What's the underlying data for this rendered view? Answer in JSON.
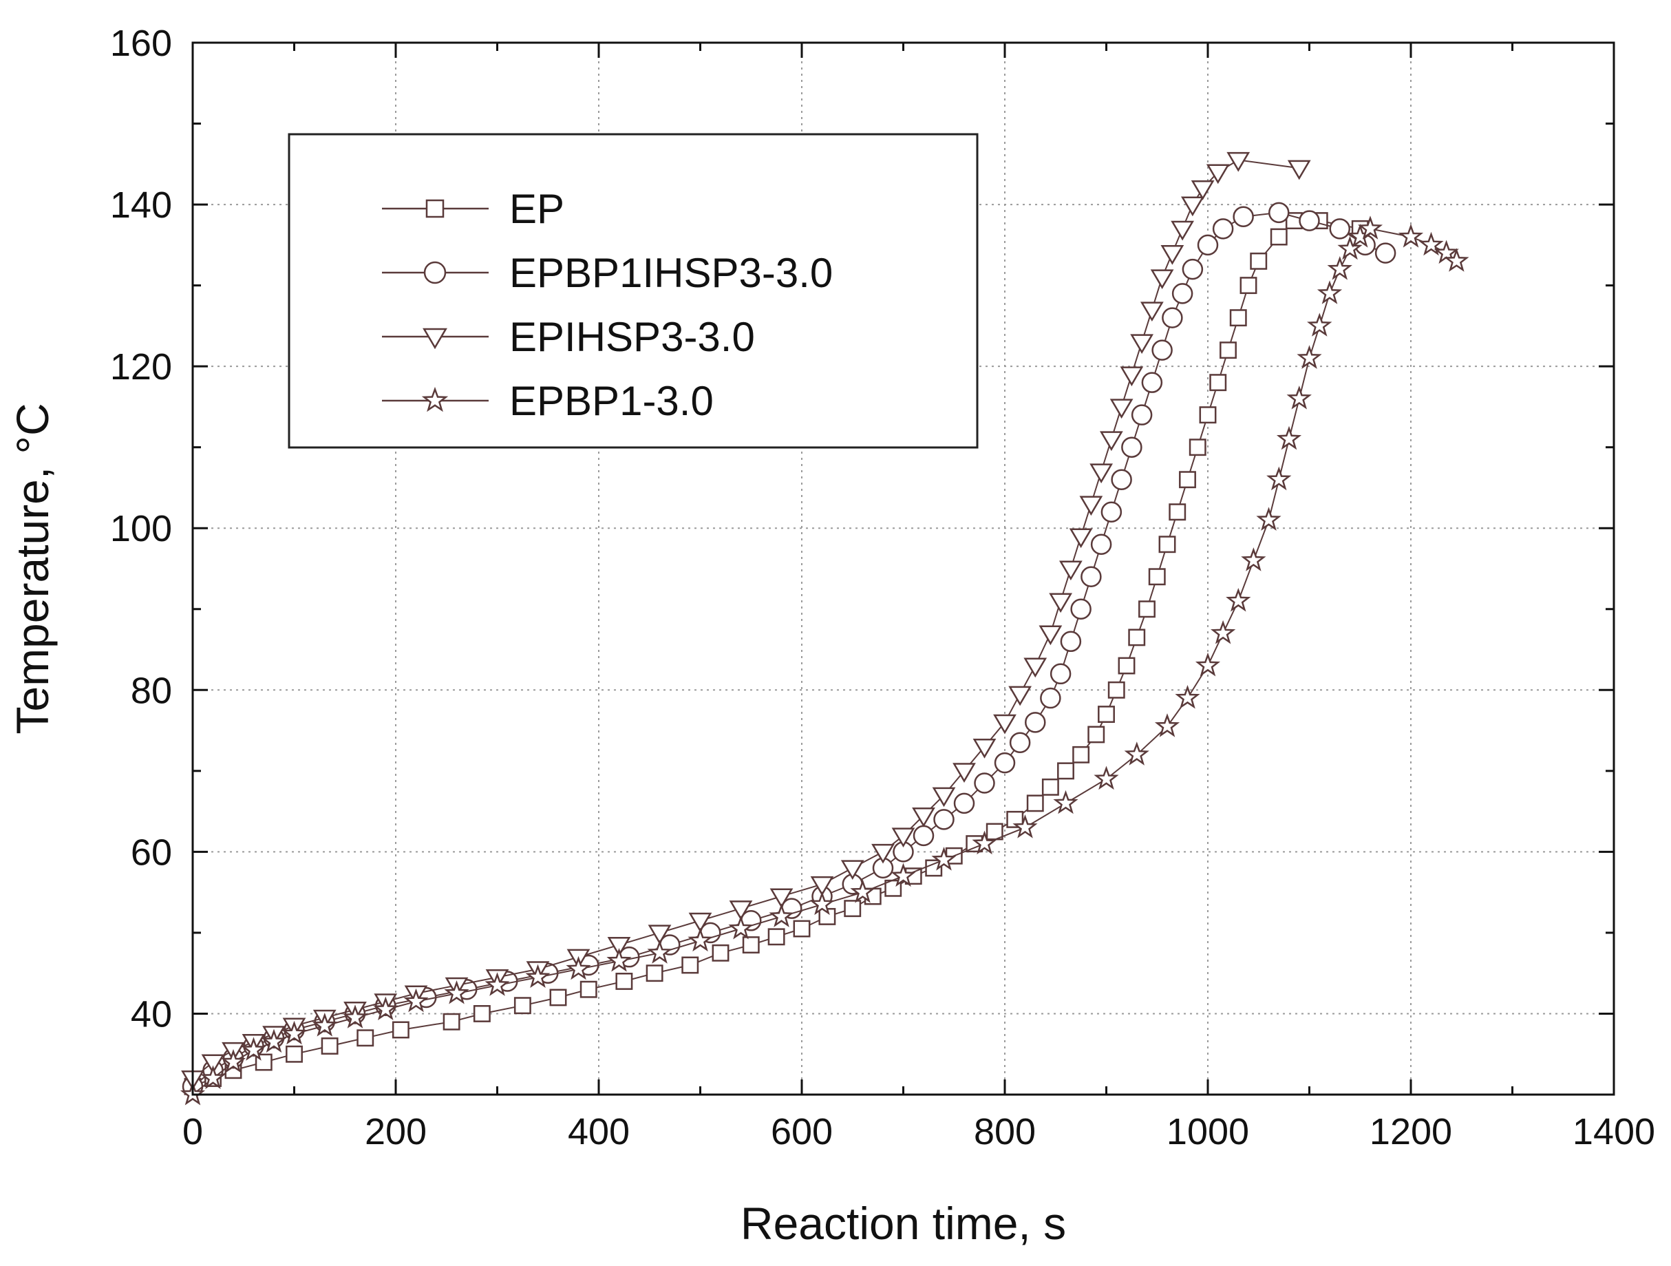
{
  "chart_data": {
    "type": "scatter",
    "title": "",
    "xlabel": "Reaction time, s",
    "ylabel": "Temperature, °C",
    "xlim": [
      0,
      1400
    ],
    "ylim": [
      30,
      160
    ],
    "xticks": [
      "0",
      "200",
      "400",
      "600",
      "800",
      "1000",
      "1200",
      "1400"
    ],
    "yticks": [
      "40",
      "60",
      "80",
      "100",
      "120",
      "140",
      "160"
    ],
    "grid": true,
    "legend_position": "top-left",
    "series": [
      {
        "name": "EP",
        "marker": "square",
        "color": "#5a3a3a",
        "x": [
          0,
          20,
          40,
          70,
          100,
          135,
          170,
          205,
          255,
          285,
          325,
          360,
          390,
          425,
          455,
          490,
          520,
          550,
          575,
          600,
          625,
          650,
          670,
          690,
          710,
          730,
          750,
          770,
          790,
          810,
          830,
          845,
          860,
          875,
          890,
          900,
          910,
          920,
          930,
          940,
          950,
          960,
          970,
          980,
          990,
          1000,
          1010,
          1020,
          1030,
          1040,
          1050,
          1070,
          1085,
          1110,
          1150
        ],
        "y": [
          31,
          32,
          33,
          34,
          35,
          36,
          37,
          38,
          39,
          40,
          41,
          42,
          43,
          44,
          45,
          46,
          47.5,
          48.5,
          49.5,
          50.5,
          52,
          53,
          54.5,
          55.5,
          57,
          58,
          59.5,
          61,
          62.5,
          64,
          66,
          68,
          70,
          72,
          74.5,
          77,
          80,
          83,
          86.5,
          90,
          94,
          98,
          102,
          106,
          110,
          114,
          118,
          122,
          126,
          130,
          133,
          136,
          138,
          138,
          137
        ]
      },
      {
        "name": "EPBP1IHSP3-3.0",
        "marker": "circle",
        "color": "#5a3a3a",
        "x": [
          0,
          20,
          40,
          60,
          80,
          100,
          130,
          160,
          190,
          230,
          270,
          310,
          350,
          390,
          430,
          470,
          510,
          550,
          590,
          620,
          650,
          680,
          700,
          720,
          740,
          760,
          780,
          800,
          815,
          830,
          845,
          855,
          865,
          875,
          885,
          895,
          905,
          915,
          925,
          935,
          945,
          955,
          965,
          975,
          985,
          1000,
          1015,
          1035,
          1070,
          1100,
          1130,
          1155,
          1175
        ],
        "y": [
          31,
          33,
          34.5,
          36,
          37,
          38,
          39,
          40,
          41,
          42,
          43,
          44,
          45,
          46,
          47,
          48.5,
          50,
          51.5,
          53,
          54.5,
          56,
          58,
          60,
          62,
          64,
          66,
          68.5,
          71,
          73.5,
          76,
          79,
          82,
          86,
          90,
          94,
          98,
          102,
          106,
          110,
          114,
          118,
          122,
          126,
          129,
          132,
          135,
          137,
          138.5,
          139,
          138,
          137,
          135,
          134
        ]
      },
      {
        "name": "EPIHSP3-3.0",
        "marker": "triangle-down",
        "color": "#5a3a3a",
        "x": [
          0,
          20,
          40,
          60,
          80,
          100,
          130,
          160,
          190,
          220,
          260,
          300,
          340,
          380,
          420,
          460,
          500,
          540,
          580,
          620,
          650,
          680,
          700,
          720,
          740,
          760,
          780,
          800,
          815,
          830,
          845,
          855,
          865,
          875,
          885,
          895,
          905,
          915,
          925,
          935,
          945,
          955,
          965,
          975,
          985,
          995,
          1010,
          1030,
          1090
        ],
        "y": [
          32,
          34,
          35.5,
          36.5,
          37.5,
          38.5,
          39.5,
          40.5,
          41.5,
          42.5,
          43.5,
          44.5,
          45.5,
          47,
          48.5,
          50,
          51.5,
          53,
          54.5,
          56,
          58,
          60,
          62,
          64.5,
          67,
          70,
          73,
          76,
          79.5,
          83,
          87,
          91,
          95,
          99,
          103,
          107,
          111,
          115,
          119,
          123,
          127,
          131,
          134,
          137,
          140,
          142,
          144,
          145.5,
          144.5
        ]
      },
      {
        "name": "EPBP1-3.0",
        "marker": "star",
        "color": "#5a3a3a",
        "x": [
          0,
          20,
          40,
          60,
          80,
          100,
          130,
          160,
          190,
          220,
          260,
          300,
          340,
          380,
          420,
          460,
          500,
          540,
          580,
          620,
          660,
          700,
          740,
          780,
          820,
          860,
          900,
          930,
          960,
          980,
          1000,
          1015,
          1030,
          1045,
          1060,
          1070,
          1080,
          1090,
          1100,
          1110,
          1120,
          1130,
          1140,
          1150,
          1160,
          1200,
          1220,
          1235,
          1245
        ],
        "y": [
          30,
          32,
          34,
          35.5,
          36.5,
          37.5,
          38.5,
          39.5,
          40.5,
          41.5,
          42.5,
          43.5,
          44.5,
          45.5,
          46.5,
          47.5,
          49,
          50.5,
          52,
          53.5,
          55,
          57,
          59,
          61,
          63,
          66,
          69,
          72,
          75.5,
          79,
          83,
          87,
          91,
          96,
          101,
          106,
          111,
          116,
          121,
          125,
          129,
          132,
          134.5,
          136,
          137,
          136,
          135,
          134,
          133
        ]
      }
    ]
  }
}
